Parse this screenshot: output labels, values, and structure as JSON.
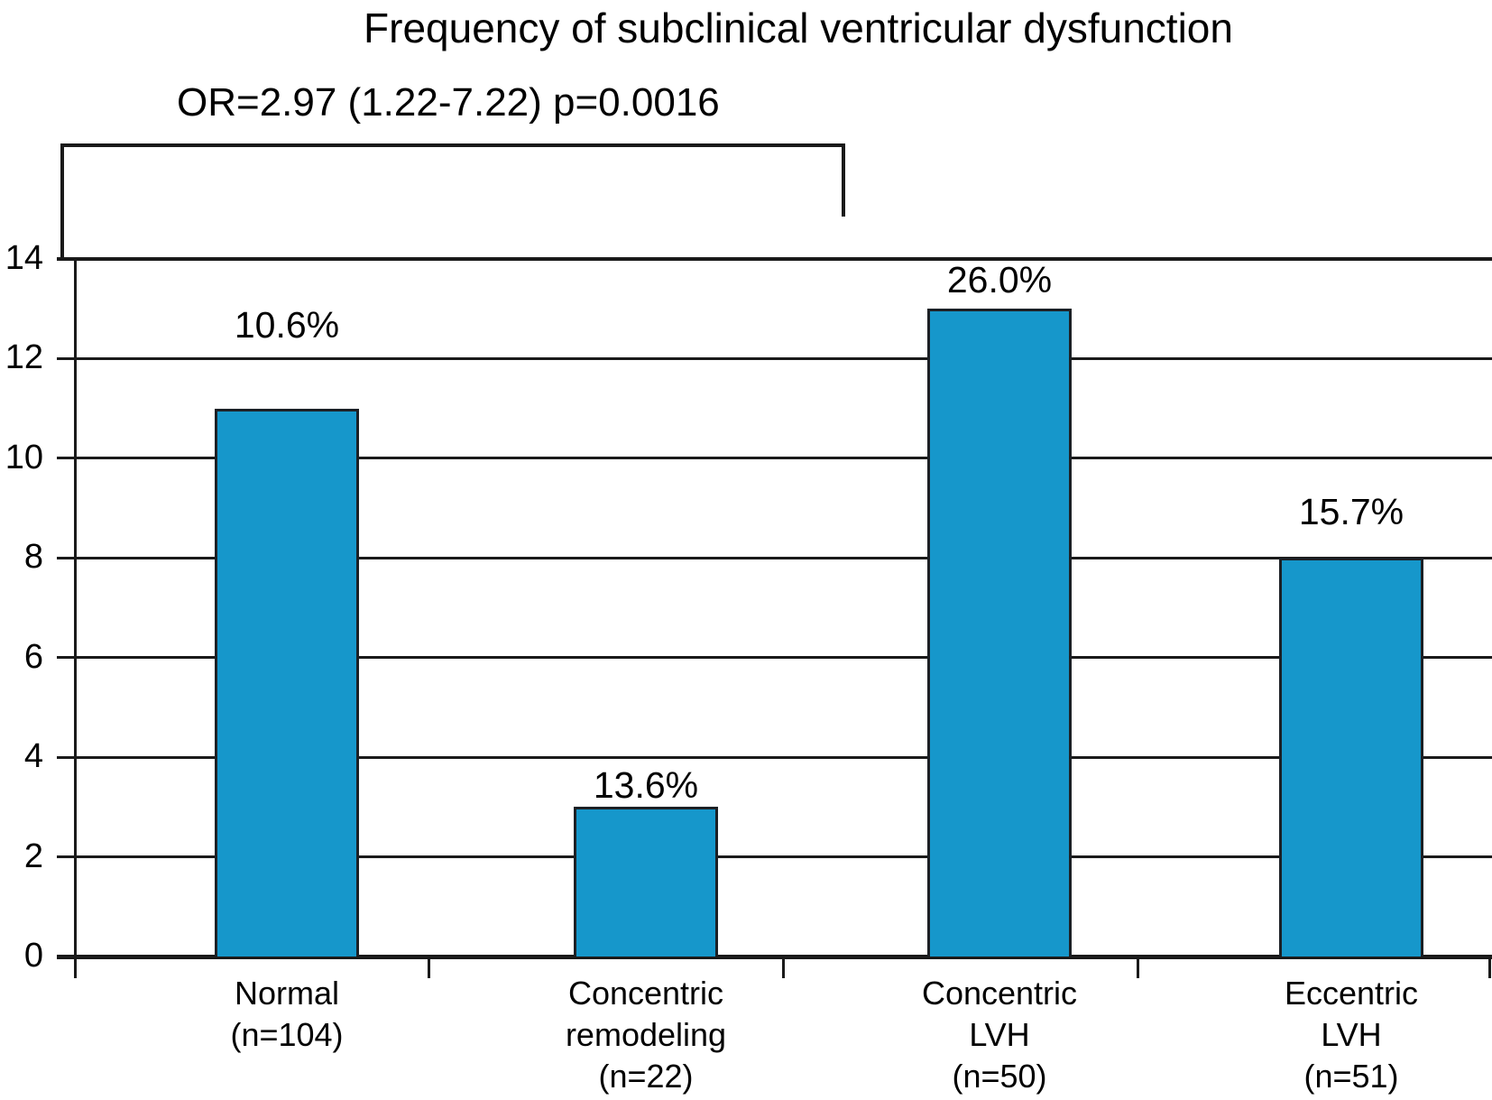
{
  "title": "Frequency of subclinical ventricular dysfunction",
  "annotation": {
    "text": "OR=2.97 (1.22-7.22) p=0.0016"
  },
  "colors": {
    "bar_fill": "#1697cb",
    "bar_border": "#1c2025",
    "line": "#1a1a1a",
    "text": "#000000",
    "background": "#ffffff"
  },
  "chart_data": {
    "type": "bar",
    "title": "Frequency of subclinical ventricular dysfunction",
    "categories": [
      "Normal (n=104)",
      "Concentric remodeling (n=22)",
      "Concentric LVH (n=50)",
      "Eccentric LVH (n=51)"
    ],
    "categories_lines": [
      [
        "Normal",
        "(n=104)"
      ],
      [
        "Concentric",
        "remodeling",
        "(n=22)"
      ],
      [
        "Concentric",
        "LVH",
        "(n=50)"
      ],
      [
        "Eccentric",
        "LVH",
        "(n=51)"
      ]
    ],
    "sample_sizes": [
      104,
      22,
      50,
      51
    ],
    "values": [
      11,
      3,
      13,
      8
    ],
    "bar_labels": [
      "10.6%",
      "13.6%",
      "26.0%",
      "15.7%"
    ],
    "xlabel": "",
    "ylabel": "",
    "ylim": [
      0,
      14
    ],
    "yticks": [
      0,
      2,
      4,
      6,
      8,
      10,
      12,
      14
    ],
    "grid": true,
    "legend": false,
    "annotation": "OR=2.97 (1.22-7.22) p=0.0016",
    "annotation_bracket": {
      "label": "OR=2.97 (1.22-7.22) p=0.0016",
      "spans": "from plot top-left edge to gap between Concentric remodeling and Concentric LVH bars"
    }
  }
}
